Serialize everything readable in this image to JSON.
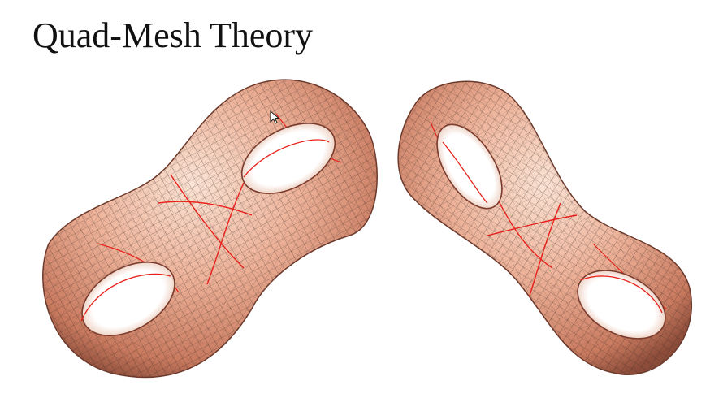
{
  "slide": {
    "title": "Quad-Mesh Theory"
  },
  "figure": {
    "left_model": "double-torus-quad-mesh-left",
    "right_model": "double-torus-quad-mesh-right",
    "surface_color": "#e8a084",
    "mesh_line_color": "#3a2a24",
    "separatrix_color": "#e8201a"
  },
  "cursor": {
    "icon": "arrow-cursor-icon"
  }
}
